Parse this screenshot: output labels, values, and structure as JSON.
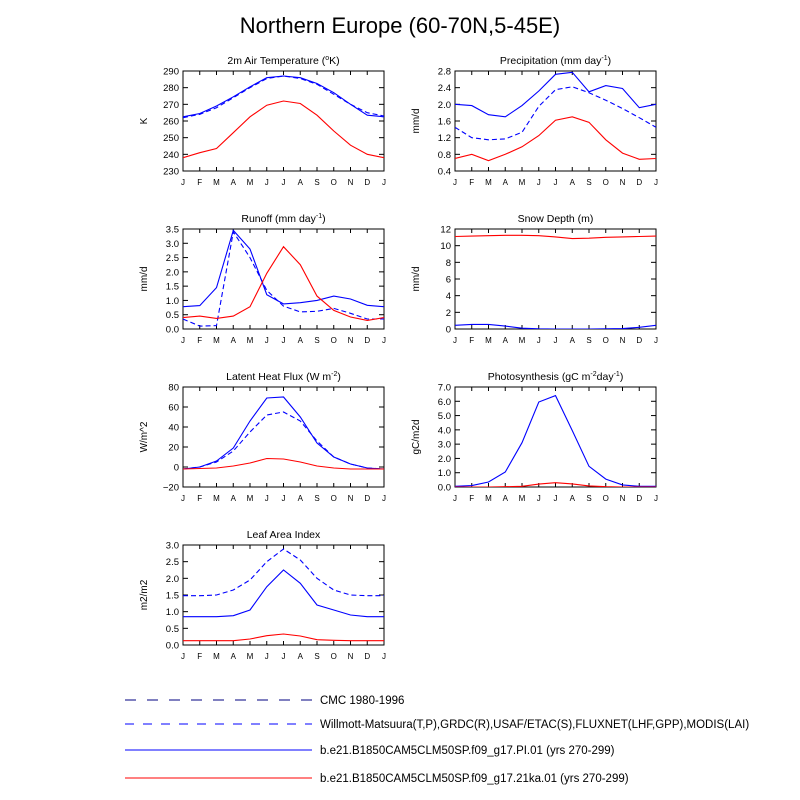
{
  "figure": {
    "title": "Northern Europe (60-70N,5-45E)"
  },
  "colors": {
    "blue": "#0000ff",
    "red": "#ff0000",
    "navy": "#000080",
    "axis": "#000000"
  },
  "months": [
    "J",
    "F",
    "M",
    "A",
    "M",
    "J",
    "J",
    "A",
    "S",
    "O",
    "N",
    "D",
    "J"
  ],
  "chart_data": [
    {
      "type": "line",
      "id": "temp",
      "title": "2m Air Temperature (°K)",
      "title_main": "2m Air Temperature (",
      "title_sup": "o",
      "title_end": "K)",
      "ylabel": "K",
      "ylim": [
        230,
        290
      ],
      "yticks": [
        230,
        240,
        250,
        260,
        270,
        280,
        290
      ],
      "yticklabels": [
        "230",
        "240",
        "250",
        "260",
        "270",
        "280",
        "290"
      ],
      "series": [
        {
          "name": "Willmott-Matsuura",
          "style": "dashed",
          "color": "blue",
          "values": [
            262,
            264,
            268,
            274,
            280,
            285.5,
            287,
            285.5,
            282,
            276,
            270,
            265,
            263
          ]
        },
        {
          "name": "b.e21.B1850CAM5CLM50SP.f09_g17.PI.01",
          "style": "solid",
          "color": "blue",
          "values": [
            262.5,
            264.5,
            269,
            274.5,
            280.5,
            286,
            287,
            286,
            282.5,
            277,
            270,
            263.5,
            262.5
          ]
        },
        {
          "name": "b.e21.B1850CAM5CLM50SP.f09_g17.21ka.01",
          "style": "solid",
          "color": "red",
          "values": [
            238,
            241,
            243.5,
            253,
            262.5,
            269.5,
            272,
            270.5,
            263.5,
            254,
            245.5,
            240,
            238
          ]
        }
      ]
    },
    {
      "type": "line",
      "id": "precip",
      "title": "Precipitation (mm day-1)",
      "title_main": "Precipitation (mm day",
      "title_sup": "-1",
      "title_end": ")",
      "ylabel": "mm/d",
      "ylim": [
        0.4,
        2.8
      ],
      "yticks": [
        0.4,
        0.8,
        1.2,
        1.6,
        2.0,
        2.4,
        2.8
      ],
      "yticklabels": [
        "0.4",
        "0.8",
        "1.2",
        "1.6",
        "2.0",
        "2.4",
        "2.8"
      ],
      "series": [
        {
          "name": "Willmott-Matsuura",
          "style": "dashed",
          "color": "blue",
          "values": [
            1.45,
            1.2,
            1.15,
            1.17,
            1.33,
            1.95,
            2.35,
            2.42,
            2.28,
            2.1,
            1.9,
            1.68,
            1.45
          ]
        },
        {
          "name": "b.e21.B1850CAM5CLM50SP.f09_g17.PI.01",
          "style": "solid",
          "color": "blue",
          "values": [
            2.0,
            1.97,
            1.75,
            1.7,
            1.97,
            2.32,
            2.72,
            2.77,
            2.3,
            2.45,
            2.38,
            1.92,
            2.0
          ]
        },
        {
          "name": "b.e21.B1850CAM5CLM50SP.f09_g17.21ka.01",
          "style": "solid",
          "color": "red",
          "values": [
            0.7,
            0.8,
            0.65,
            0.8,
            0.98,
            1.25,
            1.62,
            1.7,
            1.57,
            1.15,
            0.83,
            0.68,
            0.7
          ]
        }
      ]
    },
    {
      "type": "line",
      "id": "runoff",
      "title": "Runoff (mm day-1)",
      "title_main": "Runoff (mm day",
      "title_sup": "-1",
      "title_end": ")",
      "ylabel": "mm/d",
      "ylim": [
        0,
        3.5
      ],
      "yticks": [
        0,
        0.5,
        1.0,
        1.5,
        2.0,
        2.5,
        3.0,
        3.5
      ],
      "yticklabels": [
        "0.0",
        "0.5",
        "1.0",
        "1.5",
        "2.0",
        "2.5",
        "3.0",
        "3.5"
      ],
      "series": [
        {
          "name": "GRDC",
          "style": "dashed",
          "color": "blue",
          "values": [
            0.35,
            0.1,
            0.12,
            3.4,
            2.5,
            1.35,
            0.8,
            0.6,
            0.62,
            0.72,
            0.55,
            0.35,
            0.35
          ]
        },
        {
          "name": "b.e21.B1850CAM5CLM50SP.f09_g17.PI.01",
          "style": "solid",
          "color": "blue",
          "values": [
            0.78,
            0.82,
            1.45,
            3.45,
            2.8,
            1.2,
            0.88,
            0.92,
            1.0,
            1.15,
            1.05,
            0.83,
            0.78
          ]
        },
        {
          "name": "b.e21.B1850CAM5CLM50SP.f09_g17.21ka.01",
          "style": "solid",
          "color": "red",
          "values": [
            0.4,
            0.45,
            0.37,
            0.45,
            0.78,
            1.95,
            2.88,
            2.25,
            1.15,
            0.65,
            0.42,
            0.3,
            0.4
          ]
        }
      ]
    },
    {
      "type": "line",
      "id": "snow",
      "title": "Snow Depth (m)",
      "title_main": "Snow Depth (m)",
      "title_sup": "",
      "title_end": "",
      "ylabel": "mm/d",
      "ylim": [
        0,
        12
      ],
      "yticks": [
        0,
        2,
        4,
        6,
        8,
        10,
        12
      ],
      "yticklabels": [
        "0",
        "2",
        "4",
        "6",
        "8",
        "10",
        "12"
      ],
      "series": [
        {
          "name": "b.e21.B1850CAM5CLM50SP.f09_g17.PI.01",
          "style": "solid",
          "color": "blue",
          "values": [
            0.45,
            0.55,
            0.55,
            0.35,
            0.1,
            0.02,
            0.0,
            0.0,
            0.0,
            0.02,
            0.05,
            0.2,
            0.45
          ]
        },
        {
          "name": "b.e21.B1850CAM5CLM50SP.f09_g17.21ka.01",
          "style": "solid",
          "color": "red",
          "values": [
            11.1,
            11.15,
            11.2,
            11.25,
            11.25,
            11.2,
            11.05,
            10.85,
            10.9,
            11.0,
            11.05,
            11.1,
            11.15
          ]
        }
      ]
    },
    {
      "type": "line",
      "id": "lhf",
      "title": "Latent Heat Flux (W m-2)",
      "title_main": "Latent Heat Flux (W m",
      "title_sup": "-2",
      "title_end": ")",
      "ylabel": "W/m^2",
      "ylim": [
        -20,
        80
      ],
      "yticks": [
        -20,
        0,
        20,
        40,
        60,
        80
      ],
      "yticklabels": [
        "−20",
        "0",
        "20",
        "40",
        "60",
        "80"
      ],
      "series": [
        {
          "name": "FLUXNET",
          "style": "dashed",
          "color": "blue",
          "values": [
            -2,
            0,
            5,
            16,
            35,
            52,
            55,
            46,
            26,
            10,
            3,
            -1,
            -2
          ]
        },
        {
          "name": "b.e21.B1850CAM5CLM50SP.f09_g17.PI.01",
          "style": "solid",
          "color": "blue",
          "values": [
            -2,
            0,
            6,
            19,
            46,
            69,
            70,
            50,
            24,
            10,
            3,
            -1,
            -2
          ]
        },
        {
          "name": "b.e21.B1850CAM5CLM50SP.f09_g17.21ka.01",
          "style": "solid",
          "color": "red",
          "values": [
            -2,
            -1.5,
            -1,
            1,
            4,
            8.5,
            8,
            5,
            1,
            -1,
            -2,
            -2,
            -2
          ]
        }
      ]
    },
    {
      "type": "line",
      "id": "photo",
      "title": "Photosynthesis (gC m-2day-1)",
      "title_main": "Photosynthesis (gC m",
      "title_sup": "-2",
      "title_mid": "day",
      "title_sup2": "-1",
      "title_end": ")",
      "ylabel": "gC/m2d",
      "ylim": [
        0,
        7
      ],
      "yticks": [
        0,
        1,
        2,
        3,
        4,
        5,
        6,
        7
      ],
      "yticklabels": [
        "0.0",
        "1.0",
        "2.0",
        "3.0",
        "4.0",
        "5.0",
        "6.0",
        "7.0"
      ],
      "series": [
        {
          "name": "b.e21.B1850CAM5CLM50SP.f09_g17.PI.01",
          "style": "solid",
          "color": "blue",
          "values": [
            0.05,
            0.1,
            0.35,
            1.05,
            3.1,
            5.95,
            6.4,
            3.95,
            1.45,
            0.55,
            0.15,
            0.05,
            0.05
          ]
        },
        {
          "name": "b.e21.B1850CAM5CLM50SP.f09_g17.21ka.01",
          "style": "solid",
          "color": "red",
          "values": [
            0,
            0,
            0,
            0.02,
            0.05,
            0.2,
            0.3,
            0.22,
            0.08,
            0.02,
            0,
            0,
            0
          ]
        }
      ]
    },
    {
      "type": "line",
      "id": "lai",
      "title": "Leaf Area Index",
      "title_main": "Leaf Area Index",
      "title_sup": "",
      "title_end": "",
      "ylabel": "m2/m2",
      "ylim": [
        0,
        3
      ],
      "yticks": [
        0,
        0.5,
        1.0,
        1.5,
        2.0,
        2.5,
        3.0
      ],
      "yticklabels": [
        "0.0",
        "0.5",
        "1.0",
        "1.5",
        "2.0",
        "2.5",
        "3.0"
      ],
      "series": [
        {
          "name": "MODIS",
          "style": "dashed",
          "color": "blue",
          "values": [
            1.48,
            1.48,
            1.5,
            1.65,
            1.95,
            2.5,
            2.88,
            2.55,
            2.0,
            1.65,
            1.5,
            1.48,
            1.48
          ]
        },
        {
          "name": "b.e21.B1850CAM5CLM50SP.f09_g17.PI.01",
          "style": "solid",
          "color": "blue",
          "values": [
            0.85,
            0.85,
            0.85,
            0.88,
            1.05,
            1.75,
            2.25,
            1.85,
            1.2,
            1.05,
            0.9,
            0.85,
            0.85
          ]
        },
        {
          "name": "b.e21.B1850CAM5CLM50SP.f09_g17.21ka.01",
          "style": "solid",
          "color": "red",
          "values": [
            0.13,
            0.13,
            0.13,
            0.13,
            0.18,
            0.28,
            0.33,
            0.27,
            0.16,
            0.14,
            0.13,
            0.13,
            0.13
          ]
        }
      ]
    }
  ],
  "legend": [
    {
      "label": "CMC 1980-1996",
      "style": "longdash",
      "color": "navy"
    },
    {
      "label": "Willmott-Matsuura(T,P),GRDC(R),USAF/ETAC(S),FLUXNET(LHF,GPP),MODIS(LAI)",
      "style": "dashed",
      "color": "blue"
    },
    {
      "label": "b.e21.B1850CAM5CLM50SP.f09_g17.PI.01 (yrs 270-299)",
      "style": "solid",
      "color": "blue"
    },
    {
      "label": "b.e21.B1850CAM5CLM50SP.f09_g17.21ka.01 (yrs 270-299)",
      "style": "solid",
      "color": "red"
    }
  ]
}
